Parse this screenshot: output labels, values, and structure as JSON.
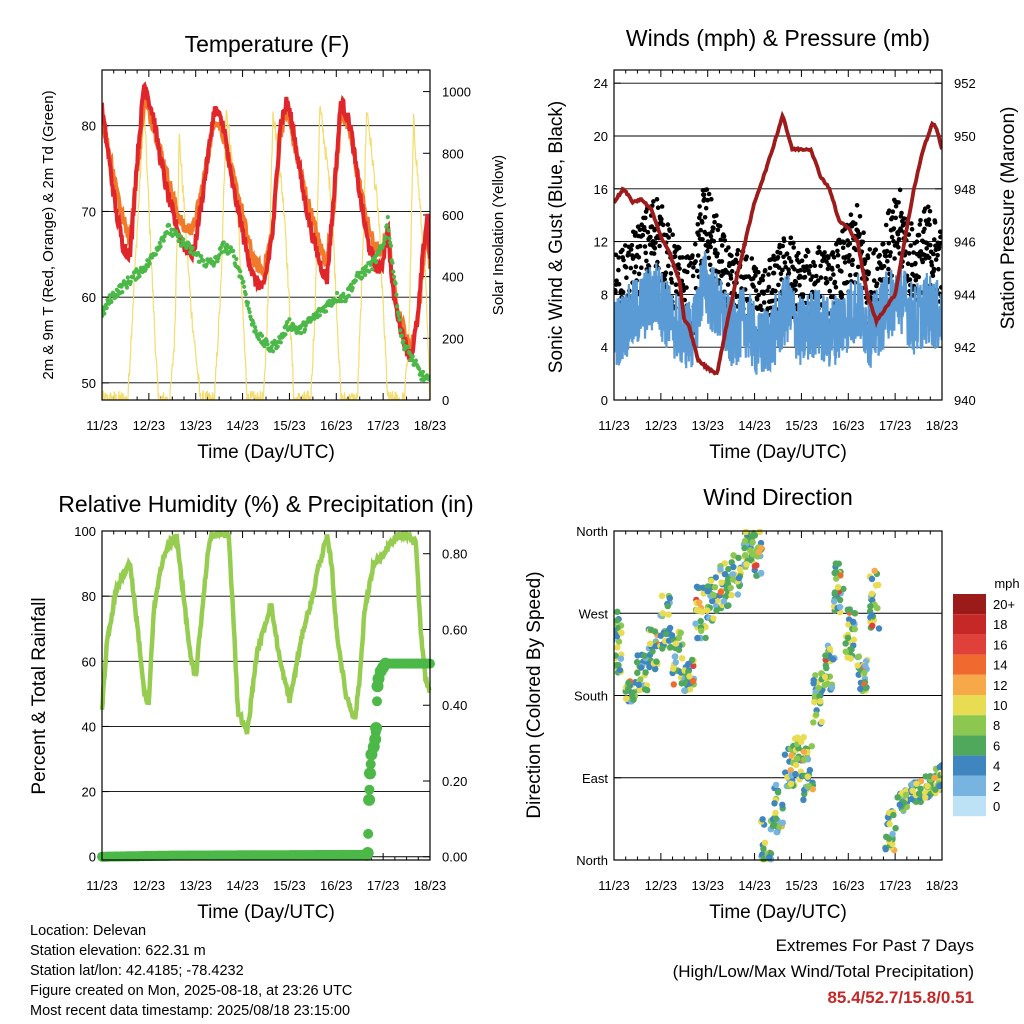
{
  "info": {
    "location": "Location: Delevan",
    "elevation": "Station elevation: 622.31 m",
    "latlon": "Station lat/lon: 42.4185; -78.4232",
    "created": "Figure created on Mon, 2025-08-18, at 23:26 UTC",
    "recent": "Most recent data timestamp: 2025/08/18 23:15:00"
  },
  "extremes": {
    "line1": "Extremes For Past 7 Days",
    "line2": "(High/Low/Max Wind/Total Precipitation)",
    "values": "85.4/52.7/15.8/0.51"
  },
  "colors": {
    "temp2m": "#e0262a",
    "temp9m": "#f07a2a",
    "dewpoint": "#4bb848",
    "solar": "#f5dc6e",
    "wind": "#5b9bd5",
    "gust": "#000000",
    "pressure": "#9e1b1b",
    "rh": "#96cc50",
    "precip": "#4bb848"
  },
  "chart_data": [
    {
      "type": "line",
      "title": "Temperature (F)",
      "xlabel": "Time (Day/UTC)",
      "ylabel": "2m & 9m T (Red, Orange) & 2m Td (Green)",
      "ylabel_right": "Solar Insolation (Yellow)",
      "xticks": [
        "11/23",
        "12/23",
        "13/23",
        "14/23",
        "15/23",
        "16/23",
        "17/23",
        "18/23"
      ],
      "xlim": [
        0,
        7
      ],
      "ylim": [
        48,
        86.5
      ],
      "yticks": [
        50,
        60,
        70,
        80
      ],
      "y2lim": [
        0,
        1070
      ],
      "y2ticks": [
        0,
        200,
        400,
        600,
        800,
        1000
      ],
      "series": [
        {
          "key": "t2m",
          "x": [
            0,
            0.15,
            0.3,
            0.45,
            0.6,
            0.75,
            0.9,
            1.1,
            1.25,
            1.4,
            1.6,
            1.75,
            1.95,
            2.15,
            2.4,
            2.6,
            2.75,
            2.95,
            3.1,
            3.25,
            3.45,
            3.65,
            3.8,
            3.95,
            4.1,
            4.3,
            4.5,
            4.65,
            4.8,
            4.95,
            5.1,
            5.3,
            5.5,
            5.65,
            5.8,
            5.95,
            6.1,
            6.2,
            6.35,
            6.5,
            6.6,
            6.75,
            6.85,
            6.95,
            7
          ],
          "y": [
            82,
            76,
            70,
            66,
            65,
            76,
            85,
            81,
            76,
            72,
            68,
            66,
            65,
            72,
            82,
            80,
            74,
            69,
            65,
            62,
            61,
            68,
            80,
            83,
            79,
            72,
            67,
            64,
            62,
            72,
            83,
            80,
            72,
            67,
            64,
            63,
            68,
            61,
            57,
            54,
            53,
            58,
            65,
            70,
            64
          ]
        },
        {
          "key": "t9m",
          "x": [
            0,
            0.15,
            0.3,
            0.45,
            0.6,
            0.75,
            0.9,
            1.1,
            1.25,
            1.4,
            1.6,
            1.75,
            1.95,
            2.15,
            2.4,
            2.6,
            2.75,
            2.95,
            3.1,
            3.25,
            3.45,
            3.65,
            3.8,
            3.95,
            4.1,
            4.3,
            4.5,
            4.65,
            4.8,
            4.95,
            5.1,
            5.3,
            5.5,
            5.65,
            5.8,
            5.95,
            6.1,
            6.2,
            6.35,
            6.5,
            6.6,
            6.75,
            6.85,
            6.95,
            7
          ],
          "y": [
            81,
            77,
            73,
            69,
            67,
            75,
            83,
            80,
            77,
            74,
            70,
            68,
            68,
            73,
            81,
            79,
            75,
            71,
            67,
            64,
            63,
            68,
            79,
            82,
            78,
            73,
            69,
            66,
            64,
            71,
            82,
            79,
            73,
            69,
            66,
            65,
            68,
            62,
            58,
            55,
            54,
            58,
            64,
            69,
            64
          ]
        },
        {
          "key": "td",
          "x": [
            0,
            0.2,
            0.4,
            0.6,
            0.8,
            1.0,
            1.2,
            1.4,
            1.6,
            1.8,
            2.0,
            2.2,
            2.4,
            2.6,
            2.8,
            3.0,
            3.2,
            3.4,
            3.6,
            3.8,
            4.0,
            4.2,
            4.4,
            4.6,
            4.8,
            5.0,
            5.2,
            5.4,
            5.6,
            5.8,
            6.0,
            6.1,
            6.2,
            6.4,
            6.6,
            6.8,
            7
          ],
          "y": [
            58,
            60,
            61,
            62,
            63,
            64,
            66,
            68,
            67,
            66,
            65,
            64,
            64,
            66,
            65,
            62,
            57,
            55,
            54,
            55,
            57,
            56,
            57,
            58,
            59,
            60,
            60,
            62,
            63,
            64,
            66,
            69,
            64,
            55,
            53,
            51,
            50
          ]
        }
      ],
      "solar": {
        "x": [
          0,
          0.55,
          0.62,
          0.9,
          1.1,
          1.2,
          1.45,
          1.55,
          1.65,
          1.9,
          2.1,
          2.2,
          2.4,
          2.55,
          2.65,
          2.9,
          3.1,
          3.2,
          3.45,
          3.55,
          3.65,
          3.9,
          4.1,
          4.2,
          4.45,
          4.55,
          4.65,
          4.9,
          5.1,
          5.2,
          5.45,
          5.55,
          5.65,
          5.9,
          6.1,
          6.2,
          6.45,
          6.55,
          6.65,
          6.9,
          7
        ],
        "y": [
          0,
          0,
          200,
          950,
          300,
          0,
          0,
          200,
          850,
          300,
          0,
          0,
          0,
          400,
          950,
          600,
          0,
          0,
          0,
          350,
          950,
          600,
          0,
          0,
          0,
          300,
          950,
          650,
          0,
          0,
          0,
          400,
          950,
          600,
          0,
          0,
          0,
          200,
          900,
          400,
          0
        ]
      }
    },
    {
      "type": "scatter",
      "title": "Winds (mph) & Pressure (mb)",
      "xlabel": "Time (Day/UTC)",
      "ylabel": "Sonic Wind & Gust (Blue, Black)",
      "ylabel_right": "Station Pressure (Maroon)",
      "xticks": [
        "11/23",
        "12/23",
        "13/23",
        "14/23",
        "15/23",
        "16/23",
        "17/23",
        "18/23"
      ],
      "xlim": [
        0,
        7
      ],
      "ylim": [
        0,
        25
      ],
      "yticks": [
        0,
        4,
        8,
        12,
        16,
        20,
        24
      ],
      "y2lim": [
        940,
        952.5
      ],
      "y2ticks": [
        940,
        942,
        944,
        946,
        948,
        950,
        952
      ],
      "wind_mean": {
        "x": [
          0,
          0.3,
          0.6,
          0.9,
          1.2,
          1.5,
          1.7,
          1.9,
          2.2,
          2.5,
          2.8,
          3.1,
          3.4,
          3.7,
          4.0,
          4.3,
          4.6,
          4.9,
          5.2,
          5.5,
          5.8,
          6.1,
          6.4,
          6.7,
          7
        ],
        "y": [
          5,
          6,
          7,
          8,
          6,
          5,
          5,
          9,
          7,
          5,
          6,
          4,
          5,
          7,
          5,
          6,
          5,
          6,
          7,
          5,
          7,
          8,
          6,
          7,
          6
        ]
      },
      "gust_mean": {
        "x": [
          0,
          0.3,
          0.6,
          0.9,
          1.2,
          1.5,
          1.7,
          1.9,
          2.2,
          2.5,
          2.8,
          3.1,
          3.4,
          3.7,
          4.0,
          4.3,
          4.6,
          4.9,
          5.2,
          5.5,
          5.8,
          6.1,
          6.4,
          6.7,
          7
        ],
        "y": [
          8,
          9,
          11,
          13,
          10,
          8,
          8,
          14,
          11,
          8,
          9,
          7,
          8,
          10,
          8,
          9,
          8,
          10,
          12,
          8,
          11,
          13,
          10,
          12,
          10
        ]
      },
      "pressure": {
        "x": [
          0,
          0.2,
          0.4,
          0.6,
          0.8,
          1.0,
          1.2,
          1.4,
          1.5,
          1.6,
          1.8,
          2.0,
          2.2,
          2.4,
          2.6,
          2.8,
          3.0,
          3.2,
          3.4,
          3.6,
          3.8,
          4.0,
          4.2,
          4.4,
          4.6,
          4.8,
          5.0,
          5.2,
          5.4,
          5.6,
          5.8,
          6.0,
          6.2,
          6.4,
          6.6,
          6.8,
          6.9,
          7
        ],
        "y": [
          947.5,
          948,
          947.5,
          947.6,
          947.2,
          946.2,
          945.5,
          944.5,
          943,
          942.8,
          941.5,
          941.2,
          941,
          942.8,
          944.5,
          946,
          947.5,
          948.5,
          949.6,
          950.8,
          949.5,
          949.5,
          949.5,
          948.5,
          948,
          946.8,
          946.5,
          946,
          944,
          943,
          943.5,
          944,
          946,
          948,
          949.5,
          950.5,
          950.2,
          949.5
        ]
      }
    },
    {
      "type": "line",
      "title": "Relative Humidity (%) & Precipitation (in)",
      "xlabel": "Time (Day/UTC)",
      "ylabel": "Percent & Total Rainfall",
      "xticks": [
        "11/23",
        "12/23",
        "13/23",
        "14/23",
        "15/23",
        "16/23",
        "17/23",
        "18/23"
      ],
      "xlim": [
        0,
        7
      ],
      "ylim": [
        -1,
        100
      ],
      "yticks": [
        0,
        20,
        40,
        60,
        80,
        100
      ],
      "y2lim": [
        -0.0086,
        0.86
      ],
      "y2ticks": [
        "0.00",
        "0.20",
        "0.40",
        "0.60",
        "0.80"
      ],
      "rh": {
        "x": [
          0,
          0.1,
          0.3,
          0.5,
          0.6,
          0.8,
          0.9,
          1.0,
          1.1,
          1.3,
          1.5,
          1.6,
          1.7,
          1.9,
          2.0,
          2.2,
          2.3,
          2.5,
          2.7,
          2.8,
          2.9,
          3.1,
          3.3,
          3.5,
          3.6,
          3.8,
          4.0,
          4.1,
          4.3,
          4.5,
          4.6,
          4.8,
          4.9,
          5.0,
          5.2,
          5.4,
          5.5,
          5.6,
          5.8,
          6.0,
          6.1,
          6.3,
          6.5,
          6.7,
          6.8,
          6.9,
          7
        ],
        "y": [
          45,
          65,
          82,
          88,
          90,
          65,
          50,
          47,
          75,
          92,
          97,
          98,
          85,
          60,
          55,
          85,
          98,
          99,
          99,
          75,
          45,
          38,
          62,
          72,
          78,
          60,
          48,
          55,
          70,
          80,
          88,
          98,
          90,
          70,
          50,
          42,
          55,
          75,
          90,
          92,
          95,
          98,
          99,
          96,
          70,
          55,
          51
        ]
      },
      "precip": {
        "x": [
          0,
          1.5,
          5.65,
          5.67,
          5.7,
          5.72,
          5.75,
          5.8,
          5.83,
          5.85,
          5.88,
          5.9,
          5.95,
          6.0,
          6.05,
          6.1,
          6.2,
          6.4,
          6.6,
          6.8,
          7
        ],
        "y": [
          0,
          0.003,
          0.005,
          0.01,
          0.15,
          0.22,
          0.27,
          0.29,
          0.31,
          0.34,
          0.45,
          0.47,
          0.49,
          0.5,
          0.51,
          0.51,
          0.51,
          0.51,
          0.51,
          0.51,
          0.51
        ]
      }
    },
    {
      "type": "scatter",
      "title": "Wind Direction",
      "xlabel": "Time (Day/UTC)",
      "ylabel": "Direction (Colored By Speed)",
      "xticks": [
        "11/23",
        "12/23",
        "13/23",
        "14/23",
        "15/23",
        "16/23",
        "17/23",
        "18/23"
      ],
      "xlim": [
        0,
        7
      ],
      "ylim": [
        0,
        360
      ],
      "yticks": [
        "North",
        "East",
        "South",
        "West",
        "North"
      ],
      "legend": {
        "title": "mph",
        "labels": [
          "20+",
          "18",
          "16",
          "14",
          "12",
          "10",
          "8",
          "6",
          "4",
          "2",
          "0"
        ],
        "colors": [
          "#9b1b1b",
          "#c62828",
          "#e0403a",
          "#f06a30",
          "#f7a94a",
          "#e8dc52",
          "#8cc850",
          "#4fa85c",
          "#3f86c0",
          "#78b4e0",
          "#bde2f6"
        ]
      },
      "clusters": [
        {
          "x": 0.05,
          "dir": 240,
          "spread": 35
        },
        {
          "x": 0.35,
          "dir": 185,
          "spread": 12
        },
        {
          "x": 0.6,
          "dir": 205,
          "spread": 20
        },
        {
          "x": 0.85,
          "dir": 230,
          "spread": 25
        },
        {
          "x": 1.1,
          "dir": 260,
          "spread": 30
        },
        {
          "x": 1.35,
          "dir": 220,
          "spread": 30
        },
        {
          "x": 1.6,
          "dir": 200,
          "spread": 20
        },
        {
          "x": 1.85,
          "dir": 270,
          "spread": 30
        },
        {
          "x": 2.1,
          "dir": 285,
          "spread": 25
        },
        {
          "x": 2.35,
          "dir": 300,
          "spread": 25
        },
        {
          "x": 2.6,
          "dir": 310,
          "spread": 25
        },
        {
          "x": 2.85,
          "dir": 340,
          "spread": 20
        },
        {
          "x": 3.05,
          "dir": 335,
          "spread": 25
        },
        {
          "x": 3.25,
          "dir": 20,
          "spread": 25
        },
        {
          "x": 3.5,
          "dir": 60,
          "spread": 30
        },
        {
          "x": 3.75,
          "dir": 100,
          "spread": 25
        },
        {
          "x": 3.95,
          "dir": 110,
          "spread": 25
        },
        {
          "x": 4.15,
          "dir": 95,
          "spread": 30
        },
        {
          "x": 4.35,
          "dir": 175,
          "spread": 30
        },
        {
          "x": 4.6,
          "dir": 210,
          "spread": 25
        },
        {
          "x": 4.8,
          "dir": 300,
          "spread": 30
        },
        {
          "x": 5.05,
          "dir": 250,
          "spread": 30
        },
        {
          "x": 5.3,
          "dir": 205,
          "spread": 20
        },
        {
          "x": 5.55,
          "dir": 285,
          "spread": 35
        },
        {
          "x": 5.9,
          "dir": 35,
          "spread": 25
        },
        {
          "x": 6.15,
          "dir": 65,
          "spread": 12
        },
        {
          "x": 6.45,
          "dir": 75,
          "spread": 12
        },
        {
          "x": 6.75,
          "dir": 80,
          "spread": 12
        },
        {
          "x": 6.95,
          "dir": 90,
          "spread": 15
        }
      ]
    }
  ]
}
